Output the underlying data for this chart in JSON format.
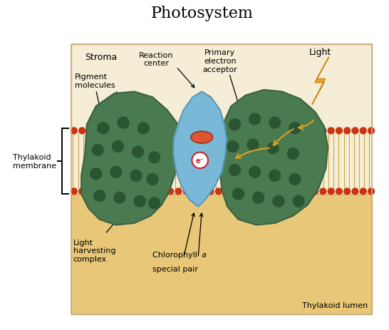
{
  "title": "Photosystem",
  "title_fontsize": 16,
  "bg_color": "#FFFFFF",
  "stroma_bg": "#F5EDD5",
  "lumen_bg": "#E8C878",
  "membrane_red_color": "#CC3311",
  "membrane_yellow_color": "#C8A030",
  "protein_green_color": "#4A7A50",
  "protein_green_edge": "#3A6040",
  "reaction_blue": "#7AB8D8",
  "reaction_blue_edge": "#5A98B8",
  "pigment_dot_color": "#2A5530",
  "chlorophyll_red": "#DD5533",
  "electron_circle_color": "#CC2222",
  "arrow_orange": "#DDA020",
  "lightning_fill": "#F5A020",
  "lightning_edge": "#CC8010",
  "text_color": "#000000",
  "label_stroma": "Stroma",
  "label_thylakoid_membrane": "Thylakoid\nmembrane",
  "label_thylakoid_lumen": "Thylakoid lumen",
  "label_pigment": "Pigment\nmolecules",
  "label_reaction_center": "Reaction\ncenter",
  "label_primary_electron": "Primary\nelectron\nacceptor",
  "label_light": "Light",
  "label_light_harvesting": "Light\nharvesting\ncomplex",
  "label_chlorophyll_pre": "Chlorophyll ",
  "label_chlorophyll_a": "a",
  "label_chlorophyll_post": "\nspecial pair",
  "fs": 8.0
}
